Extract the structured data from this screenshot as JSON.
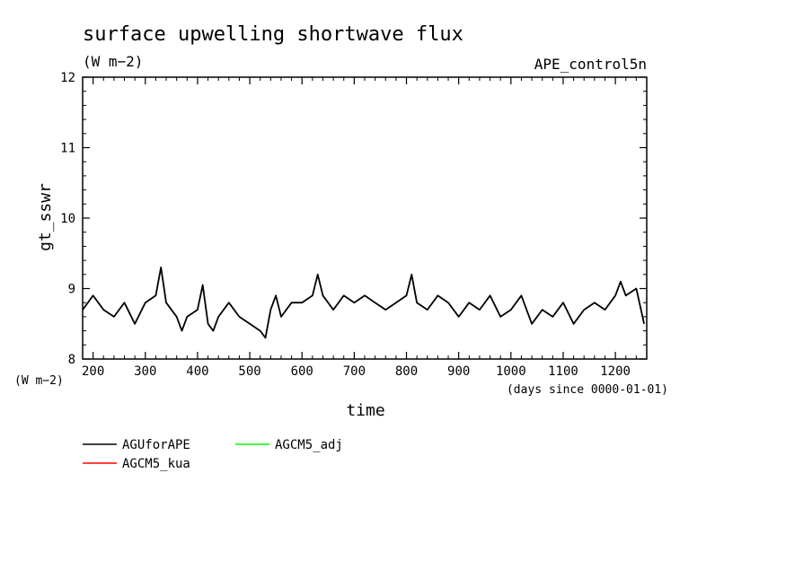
{
  "chart_data": {
    "type": "line",
    "title": "surface upwelling shortwave flux",
    "units": "(W m−2)",
    "experiment": "APE_control5n",
    "xlabel": "time",
    "x_units": "(days since 0000-01-01)",
    "ylabel": "gt_sswr",
    "y_units": "(W m−2)",
    "xlim": [
      180,
      1260
    ],
    "ylim": [
      8,
      12
    ],
    "x_ticks": [
      200,
      300,
      400,
      500,
      600,
      700,
      800,
      900,
      1000,
      1100,
      1200
    ],
    "y_ticks": [
      8,
      9,
      10,
      11,
      12
    ],
    "grid": false,
    "legend_position": "bottom-left",
    "series": [
      {
        "name": "AGUforAPE",
        "color": "#000000",
        "x": [
          180,
          200,
          220,
          240,
          260,
          280,
          300,
          320,
          330,
          340,
          360,
          370,
          380,
          400,
          410,
          420,
          430,
          440,
          460,
          480,
          500,
          520,
          530,
          540,
          550,
          560,
          580,
          600,
          620,
          630,
          640,
          660,
          680,
          700,
          720,
          740,
          760,
          780,
          800,
          810,
          820,
          840,
          860,
          880,
          900,
          920,
          940,
          960,
          980,
          1000,
          1020,
          1040,
          1060,
          1080,
          1100,
          1120,
          1140,
          1160,
          1180,
          1200,
          1210,
          1220,
          1240,
          1255
        ],
        "values": [
          8.7,
          8.9,
          8.7,
          8.6,
          8.8,
          8.5,
          8.8,
          8.9,
          9.3,
          8.8,
          8.6,
          8.4,
          8.6,
          8.7,
          9.05,
          8.5,
          8.4,
          8.6,
          8.8,
          8.6,
          8.5,
          8.4,
          8.3,
          8.7,
          8.9,
          8.6,
          8.8,
          8.8,
          8.9,
          9.2,
          8.9,
          8.7,
          8.9,
          8.8,
          8.9,
          8.8,
          8.7,
          8.8,
          8.9,
          9.2,
          8.8,
          8.7,
          8.9,
          8.8,
          8.6,
          8.8,
          8.7,
          8.9,
          8.6,
          8.7,
          8.9,
          8.5,
          8.7,
          8.6,
          8.8,
          8.5,
          8.7,
          8.8,
          8.7,
          8.9,
          9.1,
          8.9,
          9.0,
          8.5
        ]
      },
      {
        "name": "AGCM5_kua",
        "color": "#ff0000",
        "x": [],
        "values": []
      },
      {
        "name": "AGCM5_adj",
        "color": "#00ff00",
        "x": [],
        "values": []
      }
    ]
  }
}
